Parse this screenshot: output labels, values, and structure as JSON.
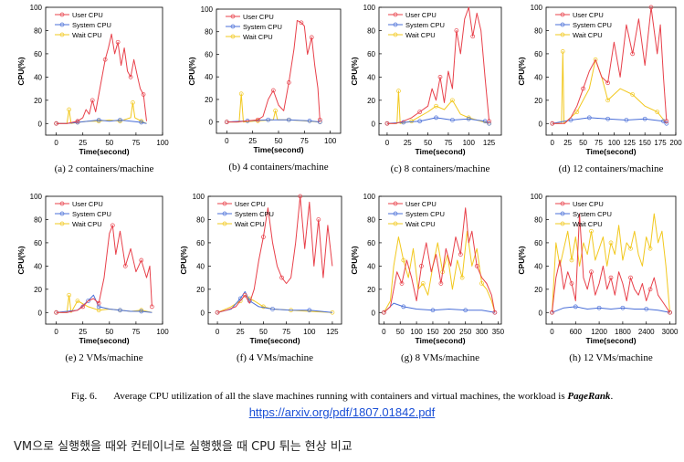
{
  "figure": {
    "caption_label": "Fig. 6.",
    "caption_text": "Average CPU utilization of all the slave machines running with containers and virtual machines, the workload is ",
    "caption_workload": "PageRank",
    "caption_end": "."
  },
  "link": {
    "text": "https://arxiv.org/pdf/1807.01842.pdf"
  },
  "note": {
    "text": "VM으로 실행했을 때와 컨테이너로 실행했을 때 CPU 튀는 현상 비교"
  },
  "colors": {
    "user": "#e8404a",
    "system": "#4a6fd8",
    "wait": "#f2c81e"
  },
  "chart_data": [
    {
      "type": "line",
      "subcaption": "(a) 2 containers/machine",
      "xlabel": "Time(second)",
      "ylabel": "CPU(%)",
      "xlim": [
        -10,
        100
      ],
      "ylim": [
        -10,
        100
      ],
      "xticks": [
        0,
        25,
        50,
        75,
        100
      ],
      "yticks": [
        0,
        20,
        40,
        60,
        80,
        100
      ],
      "legend": [
        "User CPU",
        "System CPU",
        "Wait CPU"
      ],
      "series": [
        {
          "name": "User CPU",
          "x": [
            0,
            5,
            10,
            15,
            20,
            25,
            28,
            31,
            34,
            37,
            40,
            43,
            46,
            49,
            52,
            55,
            58,
            61,
            64,
            67,
            70,
            73,
            76,
            79,
            82,
            85
          ],
          "y": [
            0,
            0,
            0,
            1,
            2,
            5,
            12,
            8,
            20,
            10,
            25,
            40,
            55,
            65,
            77,
            60,
            70,
            50,
            65,
            45,
            40,
            55,
            42,
            30,
            25,
            2
          ]
        },
        {
          "name": "System CPU",
          "x": [
            0,
            10,
            20,
            30,
            40,
            50,
            60,
            70,
            80,
            85
          ],
          "y": [
            0,
            0,
            1,
            2,
            3,
            2,
            3,
            2,
            1,
            0
          ]
        },
        {
          "name": "Wait CPU",
          "x": [
            0,
            10,
            12,
            14,
            20,
            30,
            40,
            50,
            60,
            70,
            72,
            74,
            80,
            85
          ],
          "y": [
            0,
            0,
            12,
            0,
            1,
            2,
            2,
            3,
            2,
            5,
            18,
            5,
            2,
            0
          ]
        }
      ]
    },
    {
      "type": "line",
      "subcaption": "(b) 4 containers/machine",
      "xlabel": "Time(second)",
      "ylabel": "CPU(%)",
      "xlim": [
        -10,
        110
      ],
      "ylim": [
        -10,
        100
      ],
      "xticks": [
        0,
        25,
        50,
        75,
        100
      ],
      "yticks": [
        0,
        20,
        40,
        60,
        80,
        100
      ],
      "legend": [
        "User CPU",
        "System CPU",
        "Wait CPU"
      ],
      "series": [
        {
          "name": "User CPU",
          "x": [
            0,
            10,
            20,
            30,
            35,
            40,
            45,
            50,
            55,
            60,
            65,
            68,
            72,
            75,
            78,
            82,
            85,
            88,
            90
          ],
          "y": [
            0,
            0,
            1,
            2,
            5,
            20,
            28,
            15,
            10,
            35,
            65,
            90,
            88,
            85,
            60,
            75,
            50,
            30,
            2
          ]
        },
        {
          "name": "System CPU",
          "x": [
            0,
            20,
            40,
            60,
            80,
            90
          ],
          "y": [
            0,
            1,
            2,
            2,
            1,
            0
          ]
        },
        {
          "name": "Wait CPU",
          "x": [
            0,
            12,
            14,
            16,
            30,
            45,
            47,
            49,
            60,
            75,
            90
          ],
          "y": [
            0,
            0,
            25,
            0,
            1,
            2,
            10,
            2,
            2,
            1,
            0
          ]
        }
      ]
    },
    {
      "type": "line",
      "subcaption": "(c) 8 containers/machine",
      "xlabel": "Time(second)",
      "ylabel": "CPU(%)",
      "xlim": [
        -10,
        140
      ],
      "ylim": [
        -10,
        100
      ],
      "xticks": [
        0,
        25,
        50,
        75,
        100,
        125
      ],
      "yticks": [
        0,
        20,
        40,
        60,
        80,
        100
      ],
      "legend": [
        "User CPU",
        "System CPU",
        "Wait CPU"
      ],
      "series": [
        {
          "name": "User CPU",
          "x": [
            0,
            10,
            20,
            30,
            40,
            50,
            55,
            60,
            65,
            70,
            75,
            80,
            85,
            90,
            95,
            100,
            105,
            110,
            115,
            120,
            125
          ],
          "y": [
            0,
            0,
            2,
            5,
            10,
            15,
            30,
            20,
            40,
            18,
            45,
            30,
            80,
            60,
            90,
            100,
            75,
            95,
            80,
            40,
            2
          ]
        },
        {
          "name": "System CPU",
          "x": [
            0,
            20,
            40,
            60,
            80,
            100,
            120,
            125
          ],
          "y": [
            0,
            1,
            2,
            5,
            3,
            4,
            2,
            0
          ]
        },
        {
          "name": "Wait CPU",
          "x": [
            0,
            12,
            14,
            16,
            30,
            50,
            60,
            70,
            80,
            90,
            100,
            110,
            125
          ],
          "y": [
            0,
            0,
            28,
            0,
            2,
            10,
            15,
            12,
            20,
            8,
            5,
            3,
            0
          ]
        }
      ]
    },
    {
      "type": "line",
      "subcaption": "(d) 12 containers/machine",
      "xlabel": "Time(second)",
      "ylabel": "CPU(%)",
      "xlim": [
        -10,
        200
      ],
      "ylim": [
        -10,
        100
      ],
      "xticks": [
        0,
        25,
        50,
        75,
        100,
        125,
        150,
        175,
        200
      ],
      "yticks": [
        0,
        20,
        40,
        60,
        80,
        100
      ],
      "legend": [
        "User CPU",
        "System CPU",
        "Wait CPU"
      ],
      "series": [
        {
          "name": "User CPU",
          "x": [
            0,
            20,
            30,
            40,
            50,
            60,
            70,
            80,
            90,
            100,
            110,
            120,
            130,
            140,
            150,
            155,
            160,
            170,
            175,
            180,
            185
          ],
          "y": [
            0,
            0,
            5,
            15,
            30,
            45,
            55,
            40,
            35,
            70,
            40,
            85,
            60,
            90,
            50,
            75,
            100,
            60,
            85,
            40,
            2
          ]
        },
        {
          "name": "System CPU",
          "x": [
            0,
            30,
            60,
            90,
            120,
            150,
            180,
            185
          ],
          "y": [
            0,
            3,
            5,
            4,
            3,
            4,
            2,
            0
          ]
        },
        {
          "name": "Wait CPU",
          "x": [
            0,
            15,
            17,
            19,
            40,
            60,
            70,
            80,
            90,
            110,
            130,
            150,
            170,
            185
          ],
          "y": [
            0,
            0,
            62,
            0,
            10,
            30,
            55,
            40,
            20,
            30,
            25,
            15,
            10,
            0
          ]
        }
      ]
    },
    {
      "type": "line",
      "subcaption": "(e) 2 VMs/machine",
      "xlabel": "Time(second)",
      "ylabel": "CPU(%)",
      "xlim": [
        -10,
        100
      ],
      "ylim": [
        -10,
        100
      ],
      "xticks": [
        0,
        25,
        50,
        75,
        100
      ],
      "yticks": [
        0,
        20,
        40,
        60,
        80,
        100
      ],
      "legend": [
        "User CPU",
        "System CPU",
        "Wait CPU"
      ],
      "series": [
        {
          "name": "User CPU",
          "x": [
            0,
            10,
            20,
            25,
            30,
            35,
            40,
            45,
            50,
            53,
            56,
            60,
            65,
            70,
            75,
            80,
            85,
            88,
            90
          ],
          "y": [
            0,
            0,
            2,
            5,
            10,
            12,
            8,
            30,
            68,
            75,
            50,
            70,
            40,
            55,
            35,
            45,
            30,
            40,
            5
          ]
        },
        {
          "name": "System CPU",
          "x": [
            0,
            20,
            30,
            35,
            40,
            50,
            60,
            70,
            80,
            90
          ],
          "y": [
            0,
            2,
            10,
            15,
            5,
            3,
            2,
            1,
            1,
            0
          ]
        },
        {
          "name": "Wait CPU",
          "x": [
            0,
            10,
            12,
            14,
            20,
            30,
            40,
            50,
            60,
            70,
            80,
            90
          ],
          "y": [
            0,
            0,
            15,
            0,
            10,
            5,
            2,
            3,
            2,
            1,
            2,
            0
          ]
        }
      ]
    },
    {
      "type": "line",
      "subcaption": "(f) 4 VMs/machine",
      "xlabel": "Time(second)",
      "ylabel": "CPU(%)",
      "xlim": [
        -10,
        135
      ],
      "ylim": [
        -10,
        100
      ],
      "xticks": [
        0,
        25,
        50,
        75,
        100,
        125
      ],
      "yticks": [
        0,
        20,
        40,
        60,
        80,
        100
      ],
      "legend": [
        "User CPU",
        "System CPU",
        "Wait CPU"
      ],
      "series": [
        {
          "name": "User CPU",
          "x": [
            0,
            10,
            20,
            25,
            30,
            35,
            40,
            45,
            50,
            55,
            60,
            65,
            70,
            75,
            80,
            85,
            90,
            95,
            100,
            105,
            110,
            115,
            120,
            125
          ],
          "y": [
            0,
            2,
            5,
            10,
            15,
            8,
            20,
            45,
            65,
            90,
            60,
            40,
            30,
            25,
            30,
            60,
            100,
            55,
            95,
            40,
            80,
            30,
            75,
            40
          ]
        },
        {
          "name": "System CPU",
          "x": [
            0,
            15,
            25,
            30,
            35,
            45,
            60,
            80,
            100,
            125
          ],
          "y": [
            0,
            3,
            12,
            18,
            10,
            5,
            3,
            2,
            2,
            0
          ]
        },
        {
          "name": "Wait CPU",
          "x": [
            0,
            15,
            25,
            30,
            35,
            40,
            50,
            60,
            80,
            100,
            125
          ],
          "y": [
            0,
            5,
            10,
            15,
            12,
            10,
            5,
            3,
            2,
            1,
            0
          ]
        }
      ]
    },
    {
      "type": "line",
      "subcaption": "(g) 8 VMs/machine",
      "xlabel": "Time(second)",
      "ylabel": "CPU(%)",
      "xlim": [
        -15,
        360
      ],
      "ylim": [
        -10,
        100
      ],
      "xticks": [
        0,
        50,
        100,
        150,
        200,
        250,
        300,
        350
      ],
      "yticks": [
        0,
        20,
        40,
        60,
        80,
        100
      ],
      "legend": [
        "User CPU",
        "System CPU",
        "Wait CPU"
      ],
      "series": [
        {
          "name": "User CPU",
          "x": [
            0,
            20,
            30,
            40,
            55,
            70,
            85,
            100,
            115,
            130,
            145,
            160,
            175,
            190,
            205,
            220,
            235,
            250,
            260,
            270,
            285,
            300,
            315,
            330,
            340
          ],
          "y": [
            0,
            5,
            20,
            35,
            25,
            45,
            30,
            10,
            40,
            60,
            35,
            50,
            25,
            55,
            40,
            65,
            50,
            90,
            60,
            70,
            40,
            30,
            25,
            15,
            0
          ]
        },
        {
          "name": "System CPU",
          "x": [
            0,
            30,
            60,
            100,
            150,
            200,
            250,
            300,
            340
          ],
          "y": [
            0,
            8,
            5,
            3,
            2,
            3,
            2,
            2,
            0
          ]
        },
        {
          "name": "Wait CPU",
          "x": [
            0,
            20,
            30,
            45,
            60,
            75,
            90,
            105,
            120,
            135,
            150,
            165,
            180,
            195,
            210,
            225,
            240,
            255,
            270,
            285,
            300,
            315,
            330,
            340
          ],
          "y": [
            0,
            10,
            40,
            65,
            45,
            30,
            55,
            20,
            25,
            15,
            40,
            60,
            35,
            50,
            20,
            45,
            30,
            70,
            40,
            55,
            25,
            20,
            10,
            0
          ]
        }
      ]
    },
    {
      "type": "line",
      "subcaption": "(h) 12 VMs/machine",
      "xlabel": "Time(second)",
      "ylabel": "CPU(%)",
      "xlim": [
        -150,
        3150
      ],
      "ylim": [
        -10,
        100
      ],
      "xticks": [
        0,
        600,
        1200,
        1800,
        2400,
        3000
      ],
      "yticks": [
        0,
        20,
        40,
        60,
        80,
        100
      ],
      "legend": [
        "User CPU",
        "System CPU",
        "Wait CPU"
      ],
      "series": [
        {
          "name": "User CPU",
          "x": [
            0,
            100,
            200,
            300,
            400,
            500,
            600,
            700,
            800,
            900,
            1000,
            1100,
            1200,
            1300,
            1400,
            1500,
            1600,
            1700,
            1800,
            1900,
            2000,
            2100,
            2200,
            2300,
            2400,
            2500,
            2600,
            2700,
            2800,
            2900,
            3000
          ],
          "y": [
            0,
            30,
            45,
            20,
            35,
            25,
            10,
            85,
            30,
            20,
            35,
            15,
            25,
            40,
            20,
            30,
            15,
            35,
            25,
            10,
            30,
            20,
            15,
            25,
            10,
            20,
            30,
            15,
            10,
            5,
            0
          ]
        },
        {
          "name": "System CPU",
          "x": [
            0,
            300,
            600,
            900,
            1200,
            1500,
            1800,
            2100,
            2400,
            2700,
            3000
          ],
          "y": [
            0,
            4,
            5,
            3,
            4,
            3,
            4,
            3,
            3,
            2,
            0
          ]
        },
        {
          "name": "Wait CPU",
          "x": [
            0,
            100,
            200,
            300,
            400,
            500,
            600,
            700,
            800,
            900,
            1000,
            1100,
            1200,
            1300,
            1400,
            1500,
            1600,
            1700,
            1800,
            1900,
            2000,
            2100,
            2200,
            2300,
            2400,
            2500,
            2600,
            2700,
            2800,
            2900,
            3000
          ],
          "y": [
            0,
            60,
            40,
            55,
            70,
            45,
            65,
            40,
            60,
            50,
            70,
            45,
            55,
            65,
            40,
            60,
            50,
            75,
            45,
            60,
            55,
            70,
            50,
            40,
            65,
            55,
            85,
            60,
            70,
            40,
            0
          ]
        }
      ]
    }
  ]
}
